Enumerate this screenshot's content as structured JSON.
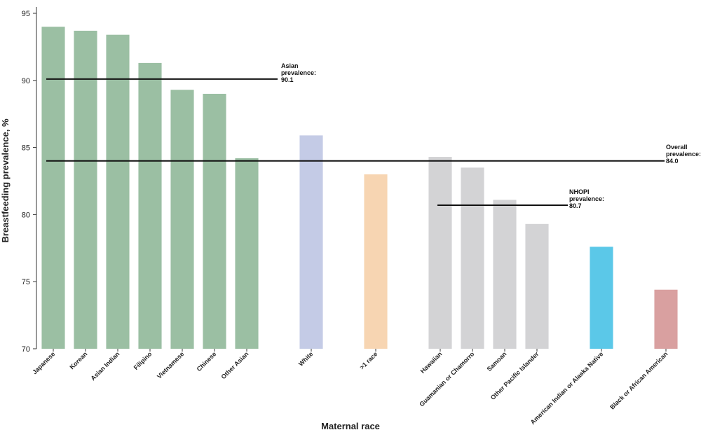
{
  "chart_data": {
    "type": "bar",
    "x_label": "Maternal race",
    "y_label": "Breastfeeding prevalence, %",
    "categories": [
      "Japanese",
      "Korean",
      "Asian Indian",
      "Filipino",
      "Vietnamese",
      "Chinese",
      "Other Asian",
      null,
      "White",
      null,
      ">1 race",
      null,
      "Hawaiian",
      "Guamanian or Chamorro",
      "Samoan",
      "Other Pacific Islander",
      null,
      "American Indian or Alaska Native",
      null,
      "Black or African American"
    ],
    "values": [
      94.0,
      93.7,
      93.4,
      91.3,
      89.3,
      89.0,
      84.2,
      null,
      85.9,
      null,
      83.0,
      null,
      84.3,
      83.5,
      81.1,
      79.3,
      null,
      77.6,
      null,
      74.4
    ],
    "colors": [
      "#9bbfa3",
      "#9bbfa3",
      "#9bbfa3",
      "#9bbfa3",
      "#9bbfa3",
      "#9bbfa3",
      "#9bbfa3",
      null,
      "#c4cbe6",
      null,
      "#f7d5b2",
      null,
      "#d3d3d5",
      "#d3d3d5",
      "#d3d3d5",
      "#d3d3d5",
      null,
      "#5bc8e8",
      null,
      "#d9a0a0"
    ],
    "ylim": [
      70,
      95
    ],
    "yticks": [
      70,
      75,
      80,
      85,
      90,
      95
    ],
    "reference_lines": [
      {
        "label": "Asian prevalence:",
        "value": 90.1
      },
      {
        "label": "Overall prevalence:",
        "value": 84.0,
        "value_label": "84.0"
      },
      {
        "label": "NHOPI prevalence:",
        "value": 80.7
      }
    ]
  }
}
